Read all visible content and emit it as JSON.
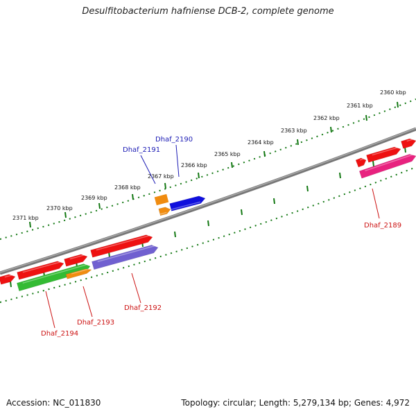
{
  "title": "Desulfitobacterium hafniense DCB-2, complete genome",
  "footer": {
    "accession": "Accession: NC_011830",
    "summary": "Topology: circular; Length: 5,279,134 bp; Genes: 4,972"
  },
  "colors": {
    "backbone": "#888888",
    "tick": "#117711",
    "scale_label": "#111111",
    "label_forward": "#1a1ab4",
    "label_reverse": "#cc1111"
  },
  "scale_labels": [
    "2360 kbp",
    "2361 kbp",
    "2362 kbp",
    "2363 kbp",
    "2364 kbp",
    "2365 kbp",
    "2366 kbp",
    "2367 kbp",
    "2368 kbp",
    "2369 kbp",
    "2370 kbp",
    "2371 kbp"
  ],
  "genes": [
    {
      "name": "Dhaf_2189",
      "strand": "reverse",
      "color": "#e8227f"
    },
    {
      "name": "Dhaf_2190",
      "strand": "forward",
      "color": "#1010dd"
    },
    {
      "name": "Dhaf_2191",
      "strand": "forward",
      "color": "#f08c10"
    },
    {
      "name": "Dhaf_2192",
      "strand": "reverse",
      "color": "#7060d0"
    },
    {
      "name": "Dhaf_2193",
      "strand": "reverse",
      "color": "#f08c10"
    },
    {
      "name": "Dhaf_2194",
      "strand": "reverse",
      "color": "#33bb33"
    }
  ],
  "unlabeled_feature_color": "#ee1111"
}
